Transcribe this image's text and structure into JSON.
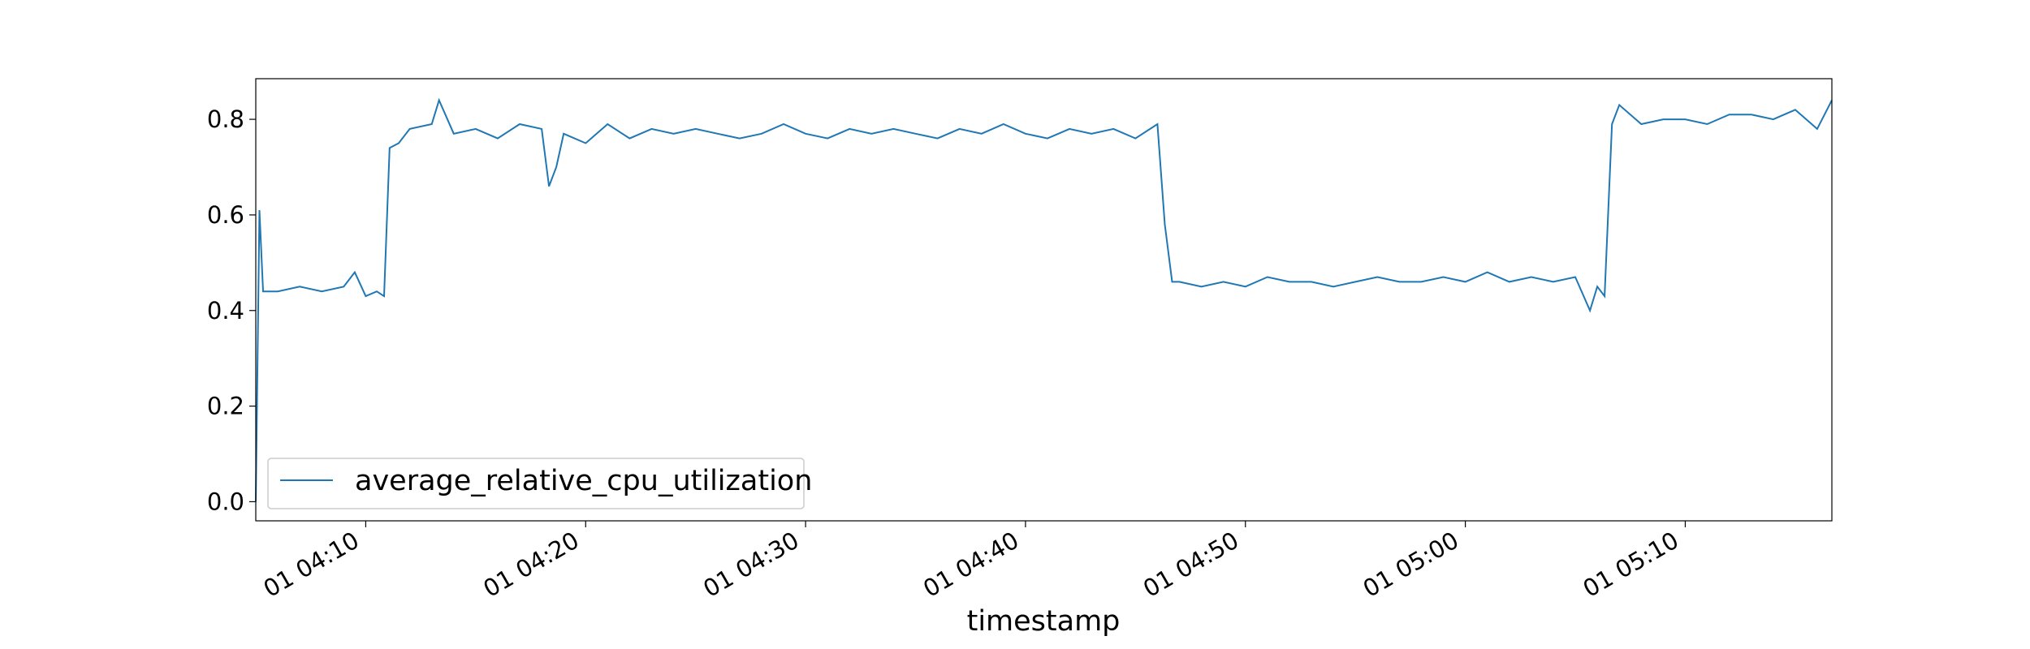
{
  "chart_data": {
    "type": "line",
    "title": "",
    "xlabel": "timestamp",
    "ylabel": "",
    "grid": false,
    "legend_position": "lower-left",
    "series_color": "#1f77b4",
    "x_range": [
      "2001-01-01T04:05:00",
      "2001-01-01T05:16:40"
    ],
    "ylim": [
      -0.04,
      0.885
    ],
    "x_ticks": [
      {
        "value": "2001-01-01T04:10:00",
        "label": "01 04:10"
      },
      {
        "value": "2001-01-01T04:20:00",
        "label": "01 04:20"
      },
      {
        "value": "2001-01-01T04:30:00",
        "label": "01 04:30"
      },
      {
        "value": "2001-01-01T04:40:00",
        "label": "01 04:40"
      },
      {
        "value": "2001-01-01T04:50:00",
        "label": "01 04:50"
      },
      {
        "value": "2001-01-01T05:00:00",
        "label": "01 05:00"
      },
      {
        "value": "2001-01-01T05:10:00",
        "label": "01 05:10"
      }
    ],
    "y_ticks": [
      {
        "value": 0.0,
        "label": "0.0"
      },
      {
        "value": 0.2,
        "label": "0.2"
      },
      {
        "value": 0.4,
        "label": "0.4"
      },
      {
        "value": 0.6,
        "label": "0.6"
      },
      {
        "value": 0.8,
        "label": "0.8"
      }
    ],
    "series": [
      {
        "name": "average_relative_cpu_utilization",
        "x": [
          "2001-01-01T04:05:00",
          "2001-01-01T04:05:10",
          "2001-01-01T04:05:20",
          "2001-01-01T04:06:00",
          "2001-01-01T04:07:00",
          "2001-01-01T04:08:00",
          "2001-01-01T04:09:00",
          "2001-01-01T04:09:30",
          "2001-01-01T04:10:00",
          "2001-01-01T04:10:30",
          "2001-01-01T04:10:50",
          "2001-01-01T04:11:05",
          "2001-01-01T04:11:30",
          "2001-01-01T04:12:00",
          "2001-01-01T04:13:00",
          "2001-01-01T04:13:20",
          "2001-01-01T04:14:00",
          "2001-01-01T04:15:00",
          "2001-01-01T04:16:00",
          "2001-01-01T04:17:00",
          "2001-01-01T04:18:00",
          "2001-01-01T04:18:20",
          "2001-01-01T04:18:40",
          "2001-01-01T04:19:00",
          "2001-01-01T04:20:00",
          "2001-01-01T04:21:00",
          "2001-01-01T04:22:00",
          "2001-01-01T04:23:00",
          "2001-01-01T04:24:00",
          "2001-01-01T04:25:00",
          "2001-01-01T04:26:00",
          "2001-01-01T04:27:00",
          "2001-01-01T04:28:00",
          "2001-01-01T04:29:00",
          "2001-01-01T04:30:00",
          "2001-01-01T04:31:00",
          "2001-01-01T04:32:00",
          "2001-01-01T04:33:00",
          "2001-01-01T04:34:00",
          "2001-01-01T04:35:00",
          "2001-01-01T04:36:00",
          "2001-01-01T04:37:00",
          "2001-01-01T04:38:00",
          "2001-01-01T04:39:00",
          "2001-01-01T04:40:00",
          "2001-01-01T04:41:00",
          "2001-01-01T04:42:00",
          "2001-01-01T04:43:00",
          "2001-01-01T04:44:00",
          "2001-01-01T04:45:00",
          "2001-01-01T04:46:00",
          "2001-01-01T04:46:20",
          "2001-01-01T04:46:40",
          "2001-01-01T04:47:00",
          "2001-01-01T04:48:00",
          "2001-01-01T04:49:00",
          "2001-01-01T04:50:00",
          "2001-01-01T04:51:00",
          "2001-01-01T04:52:00",
          "2001-01-01T04:53:00",
          "2001-01-01T04:54:00",
          "2001-01-01T04:55:00",
          "2001-01-01T04:56:00",
          "2001-01-01T04:57:00",
          "2001-01-01T04:58:00",
          "2001-01-01T04:59:00",
          "2001-01-01T05:00:00",
          "2001-01-01T05:01:00",
          "2001-01-01T05:02:00",
          "2001-01-01T05:03:00",
          "2001-01-01T05:04:00",
          "2001-01-01T05:05:00",
          "2001-01-01T05:05:40",
          "2001-01-01T05:06:00",
          "2001-01-01T05:06:20",
          "2001-01-01T05:06:40",
          "2001-01-01T05:07:00",
          "2001-01-01T05:08:00",
          "2001-01-01T05:09:00",
          "2001-01-01T05:10:00",
          "2001-01-01T05:11:00",
          "2001-01-01T05:12:00",
          "2001-01-01T05:13:00",
          "2001-01-01T05:14:00",
          "2001-01-01T05:15:00",
          "2001-01-01T05:16:00",
          "2001-01-01T05:16:40"
        ],
        "y": [
          0.0,
          0.61,
          0.44,
          0.44,
          0.45,
          0.44,
          0.45,
          0.48,
          0.43,
          0.44,
          0.43,
          0.74,
          0.75,
          0.78,
          0.79,
          0.84,
          0.77,
          0.78,
          0.76,
          0.79,
          0.78,
          0.66,
          0.7,
          0.77,
          0.75,
          0.79,
          0.76,
          0.78,
          0.77,
          0.78,
          0.77,
          0.76,
          0.77,
          0.79,
          0.77,
          0.76,
          0.78,
          0.77,
          0.78,
          0.77,
          0.76,
          0.78,
          0.77,
          0.79,
          0.77,
          0.76,
          0.78,
          0.77,
          0.78,
          0.76,
          0.79,
          0.58,
          0.46,
          0.46,
          0.45,
          0.46,
          0.45,
          0.47,
          0.46,
          0.46,
          0.45,
          0.46,
          0.47,
          0.46,
          0.46,
          0.47,
          0.46,
          0.48,
          0.46,
          0.47,
          0.46,
          0.47,
          0.4,
          0.45,
          0.43,
          0.79,
          0.83,
          0.79,
          0.8,
          0.8,
          0.79,
          0.81,
          0.81,
          0.8,
          0.82,
          0.78,
          0.84
        ]
      }
    ]
  }
}
